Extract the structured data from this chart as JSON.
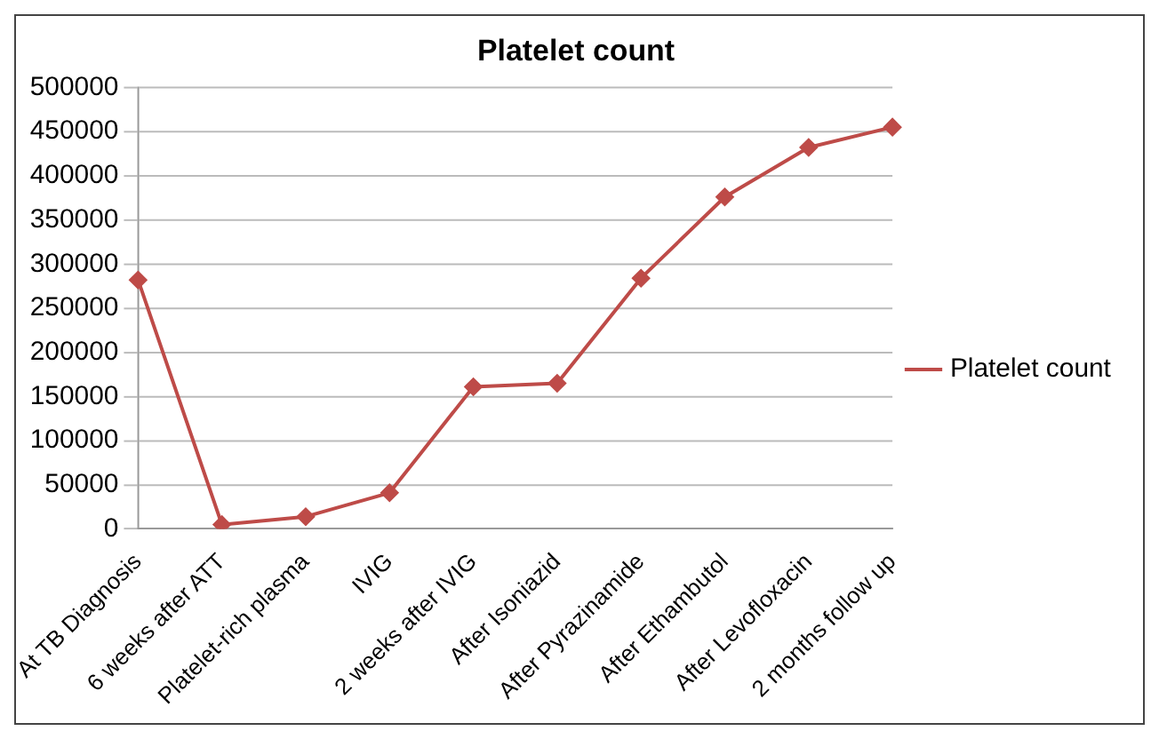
{
  "chart_data": {
    "type": "line",
    "title": "Platelet count",
    "categories": [
      "At TB Diagnosis",
      "6 weeks after ATT",
      "Platelet-rich plasma",
      "IVIG",
      "2 weeks after IVIG",
      "After Isoniazid",
      "After Pyrazinamide",
      "After Ethambutol",
      "After Levofloxacin",
      "2 months follow up"
    ],
    "series": [
      {
        "name": "Platelet count",
        "color": "#be4b48",
        "values": [
          282000,
          5000,
          14000,
          41000,
          161000,
          165000,
          284000,
          376000,
          432000,
          455000
        ]
      }
    ],
    "ylim": [
      0,
      500000
    ],
    "yticks": [
      0,
      50000,
      100000,
      150000,
      200000,
      250000,
      300000,
      350000,
      400000,
      450000,
      500000
    ],
    "grid": "y",
    "legend": "right",
    "marker": "diamond",
    "line_style": "solid"
  }
}
